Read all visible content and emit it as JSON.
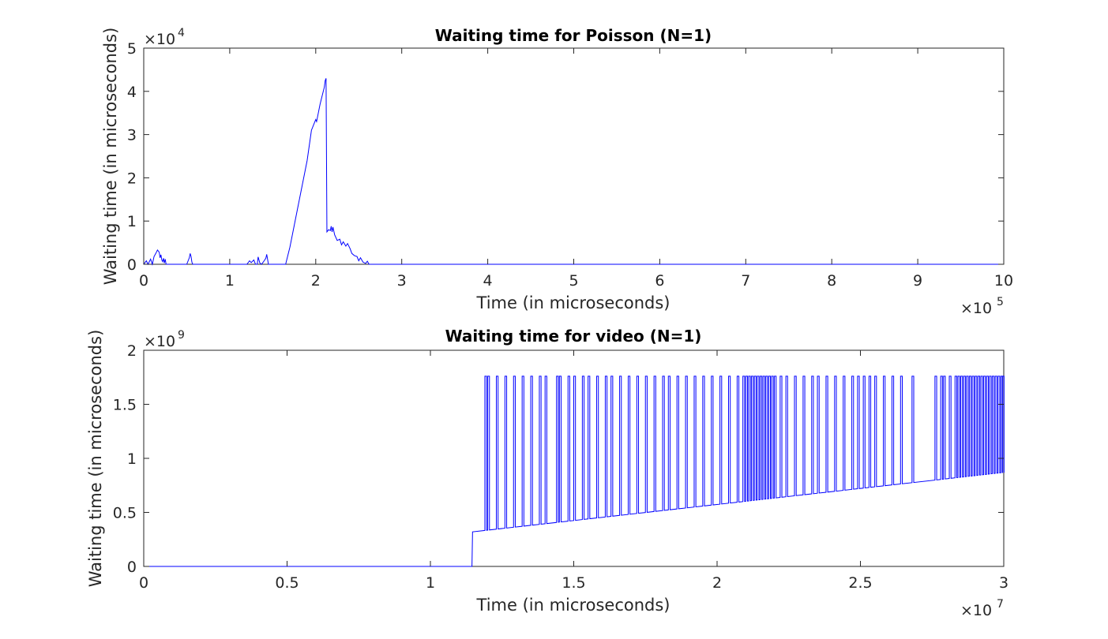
{
  "chart_data": [
    {
      "type": "line",
      "title": "Waiting time for Poisson (N=1)",
      "xlabel": "Time (in microseconds)",
      "ylabel": "Waiting time (in microseconds)",
      "x_multiplier_base": "×10",
      "x_multiplier_exp": "5",
      "y_multiplier_base": "×10",
      "y_multiplier_exp": "4",
      "xlim": [
        0,
        1000000
      ],
      "ylim": [
        0,
        50000
      ],
      "x_ticks": [
        0,
        100000,
        200000,
        300000,
        400000,
        500000,
        600000,
        700000,
        800000,
        900000,
        1000000
      ],
      "x_tick_labels": [
        "0",
        "1",
        "2",
        "3",
        "4",
        "5",
        "6",
        "7",
        "8",
        "9",
        "10"
      ],
      "y_ticks": [
        0,
        10000,
        20000,
        30000,
        40000,
        50000
      ],
      "y_tick_labels": [
        "0",
        "1",
        "2",
        "3",
        "4",
        "5"
      ],
      "grid": false,
      "color": "#0000ff",
      "series": [
        {
          "x": [
            0,
            3000,
            5000,
            8000,
            10000,
            12000,
            14000,
            16000,
            18000,
            19000,
            20000,
            21000,
            22000,
            23000,
            24000,
            25000,
            26000,
            27000,
            28000,
            30000,
            50000,
            53000,
            54000,
            55000,
            56000,
            57000,
            60000,
            120000,
            123000,
            125000,
            128000,
            130000,
            132000,
            133000,
            135000,
            137000,
            140000,
            142000,
            143000,
            145000,
            146000,
            148000,
            150000,
            165000,
            170000,
            180000,
            190000,
            195000,
            198000,
            200000,
            201000,
            203000,
            205000,
            210000,
            211000,
            212000,
            213000,
            215000,
            217000,
            218000,
            219000,
            220000,
            222000,
            225000,
            228000,
            230000,
            232000,
            235000,
            237000,
            240000,
            242000,
            245000,
            248000,
            250000,
            252000,
            255000,
            258000,
            260000,
            262000,
            1000000
          ],
          "y": [
            0,
            800,
            0,
            1200,
            0,
            1800,
            2500,
            3300,
            2800,
            1500,
            2200,
            1000,
            600,
            1400,
            300,
            1200,
            0,
            0,
            0,
            0,
            0,
            1500,
            2500,
            1800,
            500,
            0,
            0,
            0,
            800,
            400,
            1000,
            0,
            0,
            1700,
            300,
            0,
            800,
            1400,
            2300,
            0,
            0,
            0,
            0,
            0,
            4000,
            14000,
            24000,
            31000,
            32500,
            33500,
            33000,
            35000,
            37000,
            41000,
            42500,
            43000,
            7500,
            8000,
            7800,
            8800,
            7500,
            8600,
            6800,
            5500,
            5800,
            4500,
            5200,
            4200,
            4800,
            3600,
            2500,
            2000,
            1800,
            800,
            1500,
            500,
            200,
            700,
            0,
            0
          ]
        }
      ]
    },
    {
      "type": "line",
      "title": "Waiting time for video (N=1)",
      "xlabel": "Time (in microseconds)",
      "ylabel": "Waiting time (in microseconds)",
      "x_multiplier_base": "×10",
      "x_multiplier_exp": "7",
      "y_multiplier_base": "×10",
      "y_multiplier_exp": "9",
      "xlim": [
        0,
        30000000
      ],
      "ylim": [
        0,
        2000000000
      ],
      "x_ticks": [
        0,
        5000000,
        10000000,
        15000000,
        20000000,
        25000000,
        30000000
      ],
      "x_tick_labels": [
        "0",
        "0.5",
        "1",
        "1.5",
        "2",
        "2.5",
        "3"
      ],
      "y_ticks": [
        0,
        500000000,
        1000000000,
        1500000000,
        2000000000
      ],
      "y_tick_labels": [
        "0",
        "0.5",
        "1",
        "1.5",
        "2"
      ],
      "grid": false,
      "color": "#0000ff",
      "baseline": {
        "x": [
          0,
          11450000,
          11470000,
          30000000
        ],
        "y": [
          0,
          0,
          320000000,
          870000000
        ]
      },
      "spike_top": 1760000000,
      "spike_x": [
        11900000,
        12000000,
        12300000,
        12600000,
        12900000,
        13200000,
        13500000,
        13800000,
        14000000,
        14400000,
        14500000,
        14800000,
        15000000,
        15300000,
        15500000,
        15800000,
        16100000,
        16300000,
        16600000,
        16900000,
        17200000,
        17500000,
        17800000,
        18100000,
        18300000,
        18600000,
        18900000,
        19200000,
        19500000,
        19800000,
        20100000,
        20400000,
        20700000,
        20900000,
        21000000,
        21100000,
        21200000,
        21300000,
        21400000,
        21500000,
        21600000,
        21700000,
        21800000,
        21900000,
        22000000,
        22200000,
        22400000,
        22700000,
        23000000,
        23300000,
        23500000,
        23800000,
        24100000,
        24400000,
        24700000,
        24900000,
        25100000,
        25300000,
        25500000,
        25800000,
        26100000,
        26400000,
        26800000,
        27600000,
        27800000,
        27900000,
        28100000,
        28300000,
        28400000,
        28500000,
        28600000,
        28700000,
        28800000,
        28900000,
        29000000,
        29100000,
        29200000,
        29300000,
        29400000,
        29500000,
        29600000,
        29700000,
        29800000,
        29900000,
        29950000
      ]
    }
  ]
}
